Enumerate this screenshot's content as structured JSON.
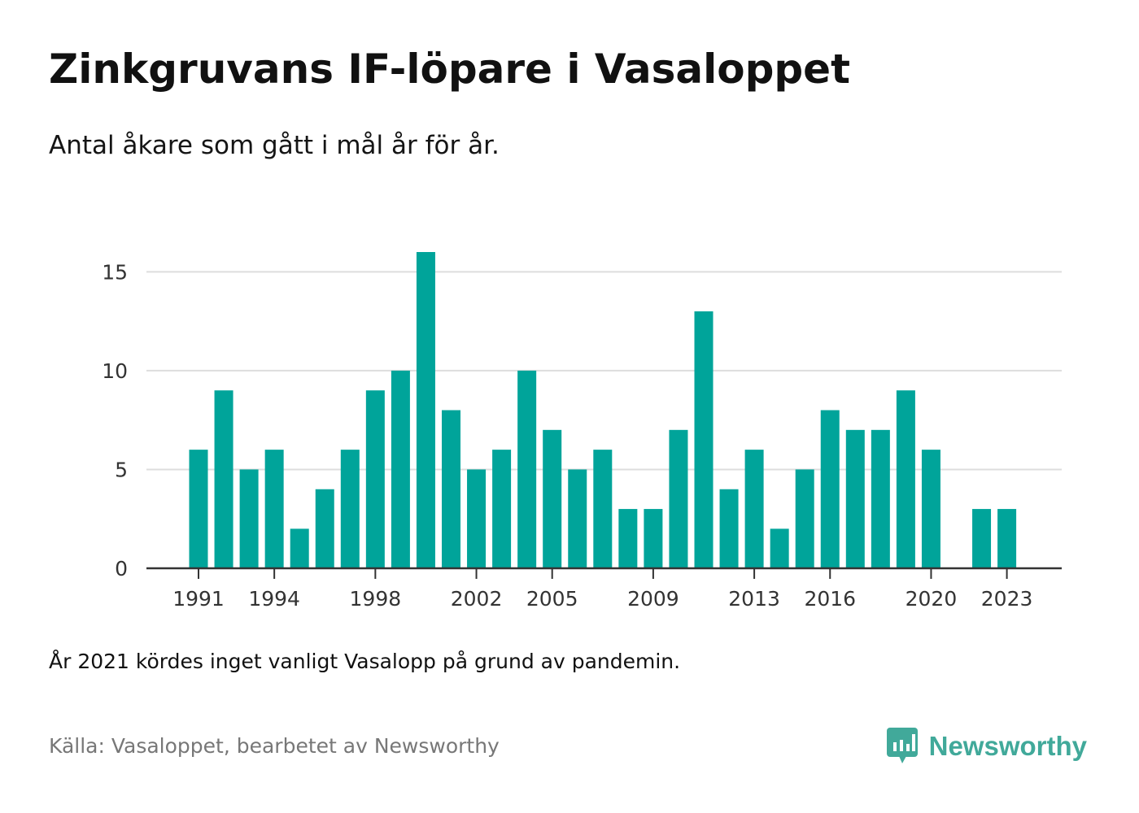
{
  "header": {
    "title": "Zinkgruvans IF-löpare i Vasaloppet",
    "subtitle": "Antal åkare som gått i mål år för år."
  },
  "chart_data": {
    "type": "bar",
    "title": "Zinkgruvans IF-löpare i Vasaloppet",
    "subtitle": "Antal åkare som gått i mål år för år.",
    "xlabel": "",
    "ylabel": "",
    "categories": [
      "1991",
      "1992",
      "1993",
      "1994",
      "1995",
      "1996",
      "1997",
      "1998",
      "1999",
      "2000",
      "2001",
      "2002",
      "2003",
      "2004",
      "2005",
      "2006",
      "2007",
      "2008",
      "2009",
      "2010",
      "2011",
      "2012",
      "2013",
      "2014",
      "2015",
      "2016",
      "2017",
      "2018",
      "2019",
      "2020",
      "2021",
      "2022",
      "2023"
    ],
    "values": [
      6,
      9,
      5,
      6,
      2,
      4,
      6,
      9,
      10,
      16,
      8,
      5,
      6,
      10,
      7,
      5,
      6,
      3,
      3,
      7,
      13,
      4,
      6,
      2,
      5,
      8,
      7,
      7,
      9,
      6,
      null,
      3,
      3
    ],
    "ylim": [
      0,
      16
    ],
    "yticks": [
      0,
      5,
      10,
      15
    ],
    "xtick_labels": [
      "1991",
      "1994",
      "1998",
      "2002",
      "2005",
      "2009",
      "2013",
      "2016",
      "2020",
      "2023"
    ],
    "grid": true,
    "legend": "none",
    "bar_color": "#00a49a",
    "grid_color": "#dddddd",
    "axis_color": "#333333"
  },
  "footer": {
    "note": "År 2021 kördes inget vanligt Vasalopp på grund av pandemin.",
    "source": "Källa: Vasaloppet, bearbetet av Newsworthy"
  },
  "brand": {
    "name": "Newsworthy",
    "color": "#41a99a",
    "icon": "bar-chart-speech-bubble-icon"
  }
}
